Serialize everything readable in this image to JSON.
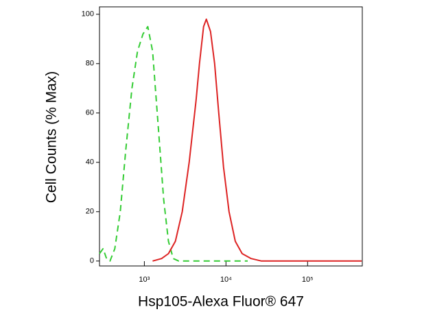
{
  "chart_data": {
    "type": "line",
    "x_label": "Hsp105-Alexa Fluor® 647",
    "y_label": "Cell Counts (% Max)",
    "xscale": "log",
    "xlim": [
      282,
      468000
    ],
    "ylim": [
      -2,
      103
    ],
    "xticks": [
      {
        "value": 1000,
        "label": "10³"
      },
      {
        "value": 10000,
        "label": "10⁴"
      },
      {
        "value": 100000,
        "label": "10⁵"
      }
    ],
    "yticks": [
      0,
      20,
      40,
      60,
      80,
      100
    ],
    "series": [
      {
        "color": "#33cc33",
        "linestyle": "dashed",
        "x": [
          282,
          312,
          344,
          379,
          434,
          507,
          592,
          705,
          824,
          962,
          1102,
          1262,
          1475,
          1723,
          1973,
          2260,
          2640,
          5740,
          18460
        ],
        "values": [
          3,
          5,
          1,
          0,
          5,
          20,
          45,
          70,
          85,
          92,
          95,
          85,
          55,
          25,
          8,
          1,
          0,
          0,
          0
        ]
      },
      {
        "color": "#dd2222",
        "linestyle": "solid",
        "x": [
          1262,
          1626,
          1973,
          2399,
          2912,
          3538,
          4296,
          4735,
          5321,
          5740,
          6460,
          7264,
          8151,
          9340,
          10910,
          13000,
          15790,
          20320,
          27220,
          460000
        ],
        "values": [
          0,
          1,
          3,
          8,
          20,
          40,
          65,
          80,
          95,
          98,
          93,
          80,
          60,
          38,
          20,
          8,
          3,
          1,
          0,
          0
        ]
      }
    ]
  }
}
